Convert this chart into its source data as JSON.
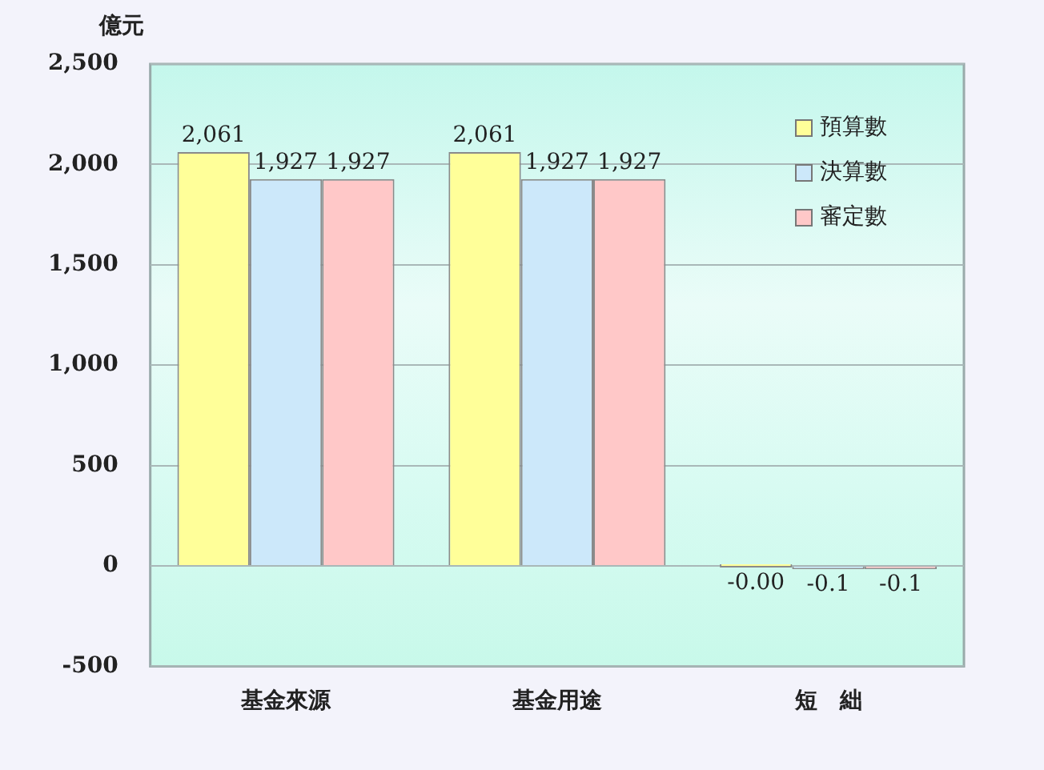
{
  "chart_data": {
    "type": "bar",
    "ylabel": "億元",
    "categories": [
      "基金來源",
      "基金用途",
      "短　絀"
    ],
    "series": [
      {
        "name": "預算數",
        "color": "#ffff99",
        "values": [
          2061,
          2061,
          0
        ],
        "value_labels": [
          "2,061",
          "2,061",
          "-0.00"
        ]
      },
      {
        "name": "決算數",
        "color": "#cce8fa",
        "values": [
          1927,
          1927,
          -0.1
        ],
        "value_labels": [
          "1,927",
          "1,927",
          "-0.1"
        ]
      },
      {
        "name": "審定數",
        "color": "#ffc8c8",
        "values": [
          1927,
          1927,
          -0.1
        ],
        "value_labels": [
          "1,927",
          "1,927",
          "-0.1"
        ]
      }
    ],
    "ylim": [
      -500,
      2500
    ],
    "yticks": [
      {
        "value": -500,
        "label": "-500"
      },
      0,
      500,
      {
        "value": 1000,
        "label": "1,000"
      },
      {
        "value": 1500,
        "label": "1,500"
      },
      {
        "value": 2000,
        "label": "2,000"
      },
      {
        "value": 2500,
        "label": "2,500"
      }
    ],
    "grid": "y",
    "legend": "top right"
  }
}
